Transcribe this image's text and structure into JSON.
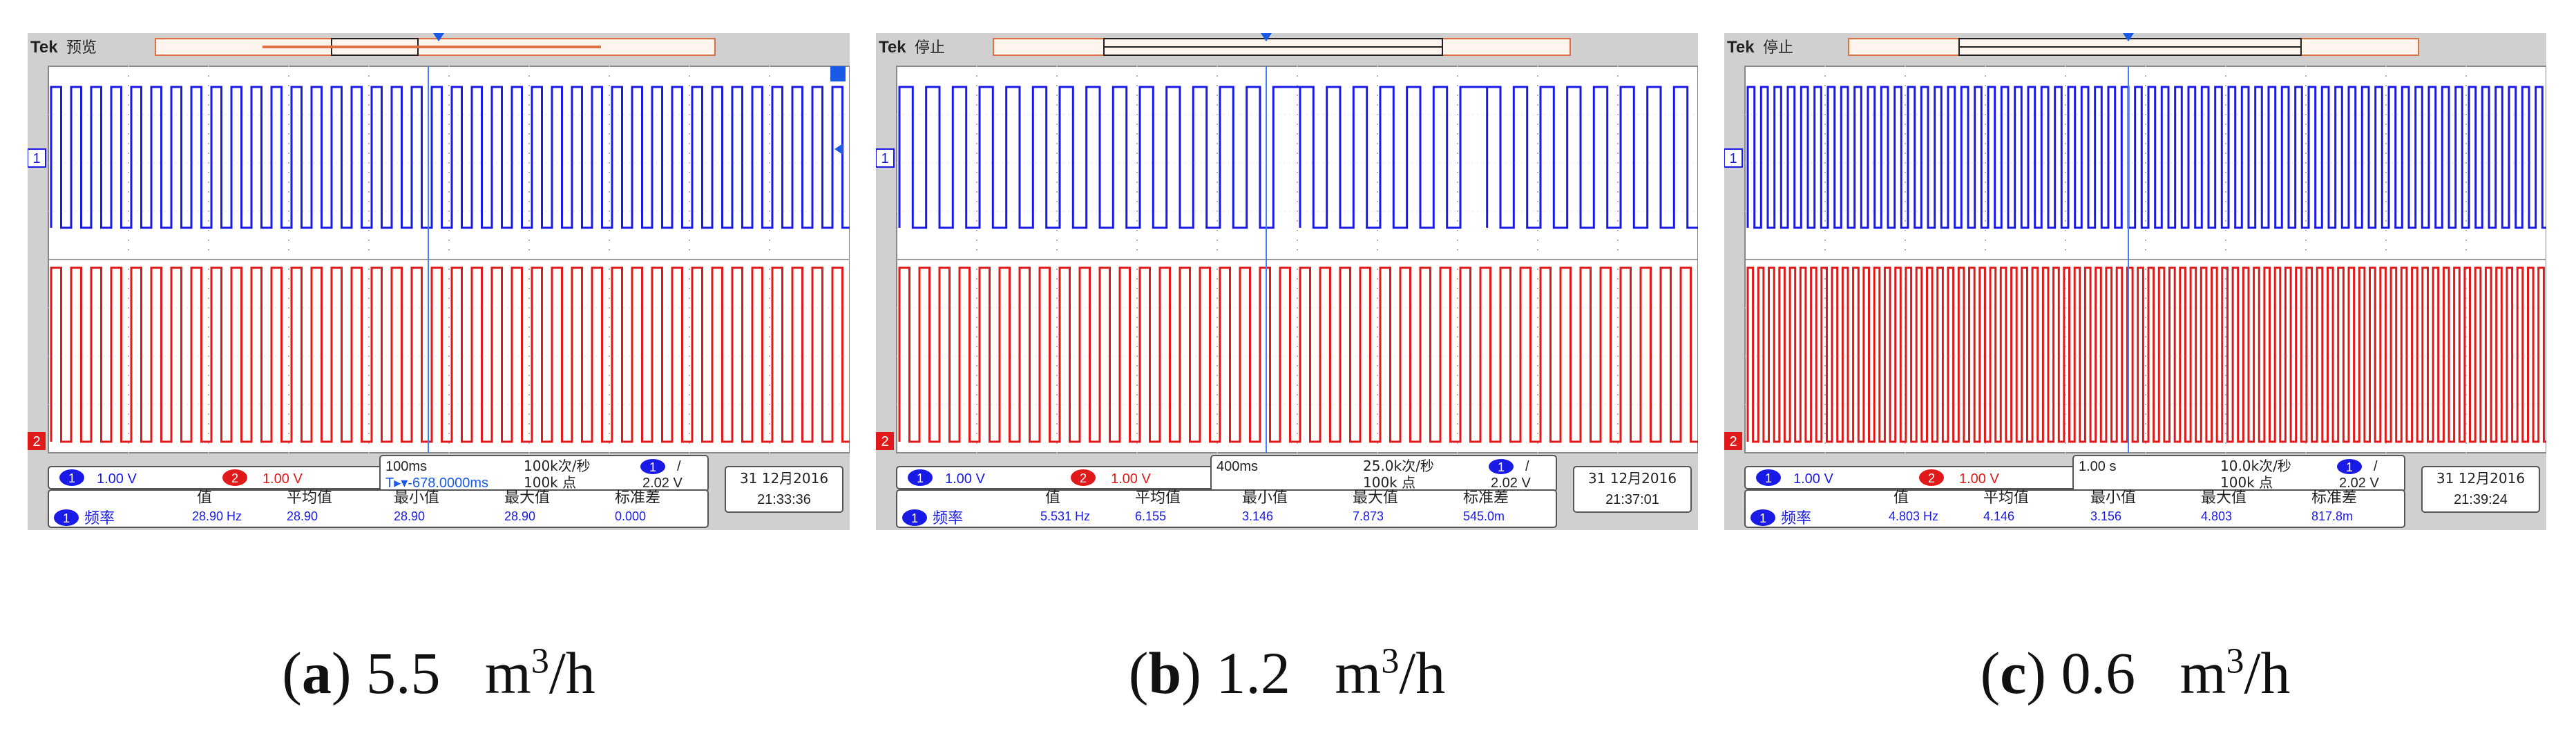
{
  "figure": {
    "captions": [
      {
        "open": "(",
        "letter": "a",
        "close": ")",
        "value": "5.5",
        "unit_m": "m",
        "unit_sup": "3",
        "unit_per": "/h"
      },
      {
        "open": "(",
        "letter": "b",
        "close": ")",
        "value": "1.2",
        "unit_m": "m",
        "unit_sup": "3",
        "unit_per": "/h"
      },
      {
        "open": "(",
        "letter": "c",
        "close": ")",
        "value": "0.6",
        "unit_m": "m",
        "unit_sup": "3",
        "unit_per": "/h"
      }
    ]
  },
  "colors": {
    "frame_bg": "#d0d0d0",
    "screen_bg": "#ffffff",
    "ch1": "#1a1ae6",
    "ch2": "#e01a1a",
    "grid": "#b8b8b8",
    "trigger_orange": "#f0a070",
    "text_dark": "#222222"
  },
  "icons": {
    "ch1_marker": "ch1-ground-marker-icon",
    "ch2_marker": "ch2-ground-marker-icon",
    "trigger": "trigger-position-icon"
  },
  "panels": [
    {
      "brand": "Tek",
      "status": "预览",
      "ch1_num": "1",
      "ch1_scale": "1.00 V",
      "ch2_num": "2",
      "ch2_scale": "1.00 V",
      "timebase": "100ms",
      "sample_rate": "100k次/秒",
      "trig_num": "1",
      "trig_slope": "/",
      "record": "100k 点",
      "trig_level": "2.02 V",
      "offset": "T▸▾-678.0000ms",
      "date": "31 12月2016",
      "time": "21:33:36",
      "meas_headers": [
        "值",
        "平均值",
        "最小值",
        "最大值",
        "标准差"
      ],
      "meas_ch": "1",
      "meas_name": "频率",
      "meas_values": [
        "28.90 Hz",
        "28.90",
        "28.90",
        "28.90",
        "0.000"
      ]
    },
    {
      "brand": "Tek",
      "status": "停止",
      "ch1_num": "1",
      "ch1_scale": "1.00 V",
      "ch2_num": "2",
      "ch2_scale": "1.00 V",
      "timebase": "400ms",
      "sample_rate": "25.0k次/秒",
      "trig_num": "1",
      "trig_slope": "/",
      "record": "100k 点",
      "trig_level": "2.02 V",
      "offset": "",
      "date": "31 12月2016",
      "time": "21:37:01",
      "meas_headers": [
        "值",
        "平均值",
        "最小值",
        "最大值",
        "标准差"
      ],
      "meas_ch": "1",
      "meas_name": "频率",
      "meas_values": [
        "5.531 Hz",
        "6.155",
        "3.146",
        "7.873",
        "545.0m"
      ]
    },
    {
      "brand": "Tek",
      "status": "停止",
      "ch1_num": "1",
      "ch1_scale": "1.00 V",
      "ch2_num": "2",
      "ch2_scale": "1.00 V",
      "timebase": "1.00 s",
      "sample_rate": "10.0k次/秒",
      "trig_num": "1",
      "trig_slope": "/",
      "record": "100k 点",
      "trig_level": "2.02 V",
      "offset": "",
      "date": "31 12月2016",
      "time": "21:39:24",
      "meas_headers": [
        "值",
        "平均值",
        "最小值",
        "最大值",
        "标准差"
      ],
      "meas_ch": "1",
      "meas_name": "频率",
      "meas_values": [
        "4.803 Hz",
        "4.146",
        "3.156",
        "4.803",
        "817.8m"
      ]
    }
  ]
}
